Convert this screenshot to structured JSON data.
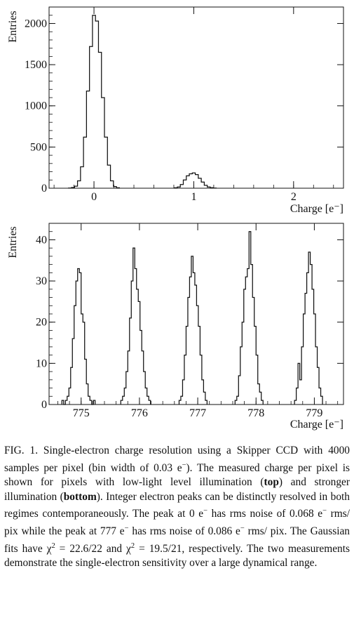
{
  "chart_data": [
    {
      "type": "histogram",
      "panel": "top",
      "ylabel": "Entries",
      "xlabel": "Charge [e⁻]",
      "xlim": [
        -0.45,
        2.5
      ],
      "ylim": [
        0,
        2200
      ],
      "xticks": [
        0,
        1,
        2
      ],
      "xtick_labels": [
        "0",
        "1",
        "2"
      ],
      "yticks": [
        0,
        500,
        1000,
        1500,
        2000
      ],
      "ytick_labels": [
        "0",
        "500",
        "1000",
        "1500",
        "2000"
      ],
      "bin_width": 0.03,
      "x": [
        -0.24,
        -0.21,
        -0.18,
        -0.15,
        -0.12,
        -0.09,
        -0.06,
        -0.03,
        0.0,
        0.03,
        0.06,
        0.09,
        0.12,
        0.15,
        0.18,
        0.21,
        0.24,
        0.82,
        0.85,
        0.88,
        0.91,
        0.94,
        0.97,
        1.0,
        1.03,
        1.06,
        1.09,
        1.12,
        1.15,
        1.18,
        1.21
      ],
      "values": [
        2,
        8,
        25,
        90,
        260,
        620,
        1180,
        1720,
        2100,
        2030,
        1650,
        1100,
        620,
        280,
        90,
        20,
        5,
        5,
        15,
        45,
        100,
        150,
        175,
        185,
        165,
        120,
        75,
        35,
        15,
        6,
        2
      ]
    },
    {
      "type": "histogram",
      "panel": "bottom",
      "ylabel": "Entries",
      "xlabel": "Charge [e⁻]",
      "xlim": [
        774.45,
        779.5
      ],
      "ylim": [
        0,
        44
      ],
      "xticks": [
        775,
        776,
        777,
        778,
        779
      ],
      "xtick_labels": [
        "775",
        "776",
        "777",
        "778",
        "779"
      ],
      "yticks": [
        0,
        10,
        20,
        30,
        40
      ],
      "ytick_labels": [
        "0",
        "10",
        "20",
        "30",
        "40"
      ],
      "bin_width": 0.03,
      "series": [
        {
          "x0": 774.67,
          "values": [
            1,
            0,
            1,
            2,
            4,
            9,
            16,
            24,
            30,
            33,
            32,
            22,
            20,
            11,
            5,
            2,
            1,
            0,
            1
          ]
        },
        {
          "x0": 775.68,
          "values": [
            1,
            2,
            4,
            8,
            13,
            21,
            30,
            38,
            33,
            28,
            25,
            18,
            13,
            8,
            4,
            2,
            1
          ]
        },
        {
          "x0": 776.68,
          "values": [
            1,
            2,
            6,
            12,
            19,
            26,
            31,
            36,
            32,
            29,
            24,
            19,
            12,
            6,
            3,
            1
          ]
        },
        {
          "x0": 777.64,
          "values": [
            1,
            2,
            7,
            14,
            20,
            28,
            31,
            33,
            42,
            34,
            26,
            19,
            12,
            5,
            3,
            1
          ]
        },
        {
          "x0": 778.66,
          "values": [
            1,
            4,
            10,
            6,
            14,
            22,
            27,
            32,
            37,
            34,
            28,
            22,
            14,
            9,
            4,
            2
          ]
        }
      ]
    }
  ],
  "caption": {
    "segments": [
      {
        "t": "FIG. 1.    Single-electron charge resolution using a Skipper CCD with 4000 samples per pixel (bin width of 0.03 e"
      },
      {
        "t": "−",
        "sup": true
      },
      {
        "t": ").  The measured charge per pixel is shown for pixels with low-light level illumination ("
      },
      {
        "t": "top",
        "bold": true
      },
      {
        "t": ") and stronger illumination ("
      },
      {
        "t": "bottom",
        "bold": true
      },
      {
        "t": "). Integer electron peaks can be distinctly resolved in both regimes contemporaneously.  The peak at 0 e"
      },
      {
        "t": "−",
        "sup": true
      },
      {
        "t": " has rms noise of 0.068 e"
      },
      {
        "t": "−",
        "sup": true
      },
      {
        "t": " rms/ pix while the peak at 777 e"
      },
      {
        "t": "−",
        "sup": true
      },
      {
        "t": " has rms noise of 0.086 e"
      },
      {
        "t": "−",
        "sup": true
      },
      {
        "t": " rms/ pix.  The Gaussian fits have χ"
      },
      {
        "t": "2",
        "sup": true
      },
      {
        "t": " = 22.6/22 and χ"
      },
      {
        "t": "2",
        "sup": true
      },
      {
        "t": " = 19.5/21, respectively.  The two measurements demonstrate the single-electron sensitivity over a large dynamical range."
      }
    ]
  }
}
